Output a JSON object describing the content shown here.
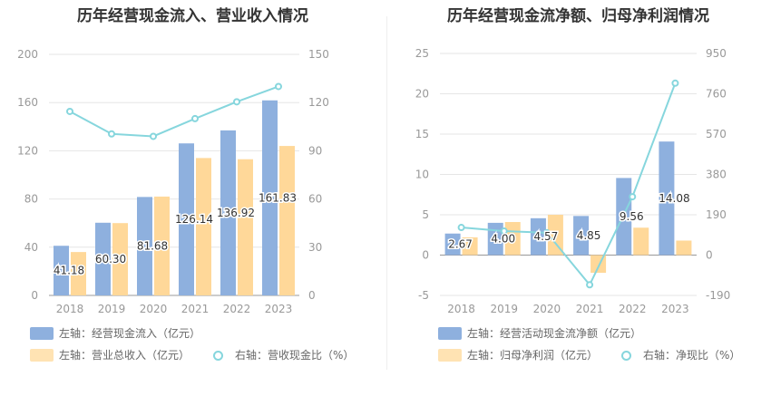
{
  "colors": {
    "bar1": "#8eb0de",
    "bar2": "#ffd899",
    "line": "#86d6dd"
  },
  "left": {
    "title": "历年经营现金流入、营业收入情况",
    "legend": {
      "bar1": "左轴：经营现金流入（亿元）",
      "bar2": "左轴：营业总收入（亿元）",
      "line": "右轴：营收现金比（%）"
    }
  },
  "right": {
    "title": "历年经营现金流净额、归母净利润情况",
    "legend": {
      "bar1": "左轴：经营活动现金流净额（亿元）",
      "bar2": "左轴：归母净利润（亿元）",
      "line": "右轴：净现比（%）"
    }
  },
  "chart_data": [
    {
      "type": "bar",
      "categories": [
        "2018",
        "2019",
        "2020",
        "2021",
        "2022",
        "2023"
      ],
      "series": [
        {
          "name": "左轴：经营现金流入（亿元）",
          "axis": "left",
          "values": [
            41.18,
            60.3,
            81.68,
            126.14,
            136.92,
            161.83
          ],
          "labels": [
            "41.18",
            "60.30",
            "81.68",
            "126.14",
            "136.92",
            "161.83"
          ]
        },
        {
          "name": "左轴：营业总收入（亿元）",
          "axis": "left",
          "values": [
            36,
            60,
            82,
            114,
            113,
            124
          ]
        },
        {
          "name": "右轴：营收现金比（%）",
          "axis": "right",
          "type": "line",
          "values": [
            114.5,
            100.5,
            99,
            110,
            120.5,
            130
          ]
        }
      ],
      "left_axis": {
        "ylim": [
          0,
          200
        ],
        "ticks": [
          "0",
          "40",
          "80",
          "120",
          "160",
          "200"
        ]
      },
      "right_axis": {
        "ylim": [
          0,
          150
        ],
        "ticks": [
          "0",
          "30",
          "60",
          "90",
          "120",
          "150"
        ]
      },
      "grid": true,
      "legend_position": "bottom"
    },
    {
      "type": "bar",
      "categories": [
        "2018",
        "2019",
        "2020",
        "2021",
        "2022",
        "2023"
      ],
      "series": [
        {
          "name": "左轴：经营活动现金流净额（亿元）",
          "axis": "left",
          "values": [
            2.67,
            4.0,
            4.57,
            4.85,
            9.56,
            14.08
          ],
          "labels": [
            "2.67",
            "4.00",
            "4.57",
            "4.85",
            "9.56",
            "14.08"
          ]
        },
        {
          "name": "左轴：归母净利润（亿元）",
          "axis": "left",
          "values": [
            2.2,
            4.1,
            5.0,
            -2.2,
            3.4,
            1.8
          ]
        },
        {
          "name": "右轴：净现比（%）",
          "axis": "right",
          "type": "line",
          "values": [
            130,
            113,
            105,
            -140,
            275,
            810
          ]
        }
      ],
      "left_axis": {
        "ylim": [
          -5,
          25
        ],
        "ticks": [
          "-5",
          "0",
          "5",
          "10",
          "15",
          "20",
          "25"
        ]
      },
      "right_axis": {
        "ylim": [
          -190,
          950
        ],
        "ticks": [
          "-190",
          "0",
          "190",
          "380",
          "570",
          "760",
          "950"
        ]
      },
      "grid": true,
      "legend_position": "bottom"
    }
  ]
}
